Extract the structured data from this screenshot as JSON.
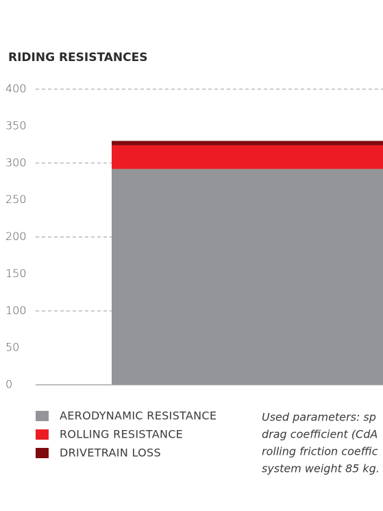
{
  "chart_data": {
    "type": "stacked_bar",
    "title": "RIDING RESISTANCES",
    "categories": [
      null
    ],
    "series": [
      {
        "name": "AERODYNAMIC RESISTANCE",
        "color": "#939598",
        "values": [
          292
        ]
      },
      {
        "name": "ROLLING RESISTANCE",
        "color": "#ed1c24",
        "values": [
          32
        ]
      },
      {
        "name": "DRIVETRAIN LOSS",
        "color": "#7f0a0e",
        "values": [
          6
        ]
      }
    ],
    "ylim": [
      0,
      400
    ],
    "yticks": [
      0,
      50,
      100,
      150,
      200,
      250,
      300,
      350,
      400
    ],
    "grid": true,
    "legend": "bottom-left",
    "annotation": [
      "Used parameters: sp",
      "drag coefficient (CdA",
      "rolling friction coeffic",
      "system weight 85 kg."
    ]
  }
}
